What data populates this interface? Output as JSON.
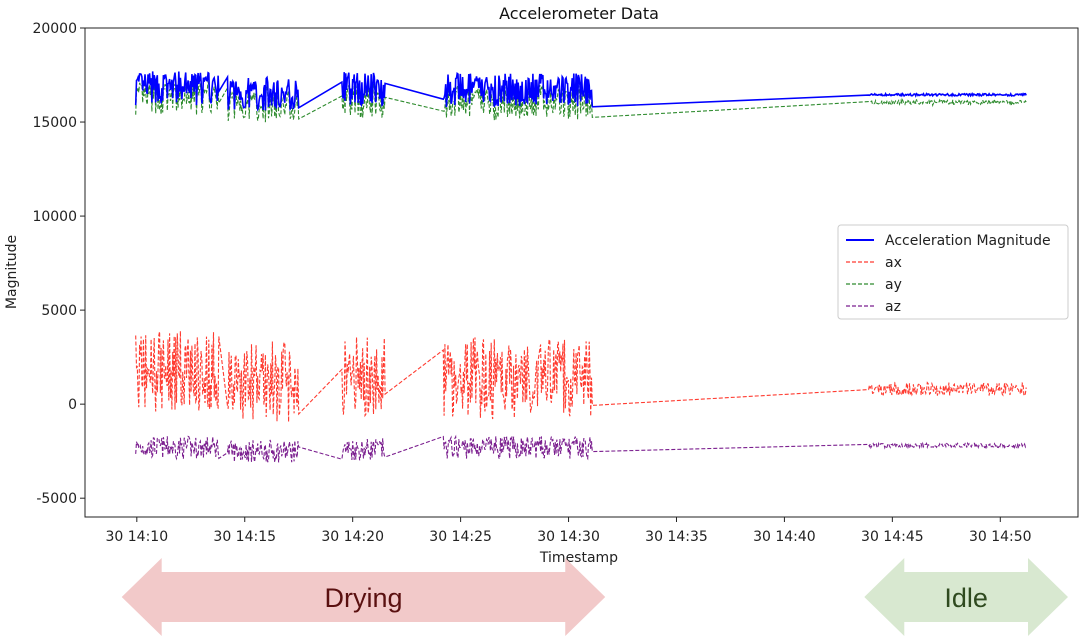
{
  "chart_data": {
    "type": "line",
    "title": "Accelerometer Data",
    "xlabel": "Timestamp",
    "ylabel": "Magnitude",
    "ylim": [
      -6000,
      20000
    ],
    "xlim_minutes": [
      7.6,
      53.6
    ],
    "y_ticks": [
      -5000,
      0,
      5000,
      10000,
      15000,
      20000
    ],
    "x_tick_labels": [
      "30 14:10",
      "30 14:15",
      "30 14:20",
      "30 14:25",
      "30 14:30",
      "30 14:35",
      "30 14:40",
      "30 14:45",
      "30 14:50"
    ],
    "x_tick_minutes": [
      10,
      15,
      20,
      25,
      30,
      35,
      40,
      45,
      50
    ],
    "legend_position": "center-right",
    "grid": false,
    "series": [
      {
        "name": "Acceleration Magnitude",
        "color": "#0000ff",
        "dash": "solid"
      },
      {
        "name": "ax",
        "color": "#ff3b30",
        "dash": "dashed"
      },
      {
        "name": "ay",
        "color": "#2e8b2e",
        "dash": "dashed"
      },
      {
        "name": "az",
        "color": "#7b1f8f",
        "dash": "dashed"
      }
    ],
    "segments": [
      {
        "start": 9.95,
        "end": 13.8,
        "mag": 16800,
        "ax": 1800,
        "ay": 16500,
        "az": -2300,
        "noisy": true
      },
      {
        "start": 14.2,
        "end": 17.5,
        "mag": 16500,
        "ax": 1200,
        "ay": 16200,
        "az": -2500,
        "noisy": true
      },
      {
        "start": 19.5,
        "end": 21.5,
        "mag": 16800,
        "ax": 1500,
        "ay": 16400,
        "az": -2400,
        "noisy": true
      },
      {
        "start": 24.2,
        "end": 31.1,
        "mag": 16700,
        "ax": 1400,
        "ay": 16300,
        "az": -2300,
        "noisy": true
      },
      {
        "start": 43.9,
        "end": 51.2,
        "mag": 16450,
        "ax": 800,
        "ay": 16300,
        "az": -2200,
        "noisy": false
      }
    ],
    "annotations": [
      {
        "label": "Drying",
        "start_minute": 9.3,
        "end_minute": 31.7
      },
      {
        "label": "Idle",
        "start_minute": 43.7,
        "end_minute": 53.7
      }
    ]
  },
  "colors": {
    "drying_arrow": "#f2c9c9",
    "drying_text": "#5a1010",
    "idle_arrow": "#d8e8d0",
    "idle_text": "#2f4a1f"
  }
}
